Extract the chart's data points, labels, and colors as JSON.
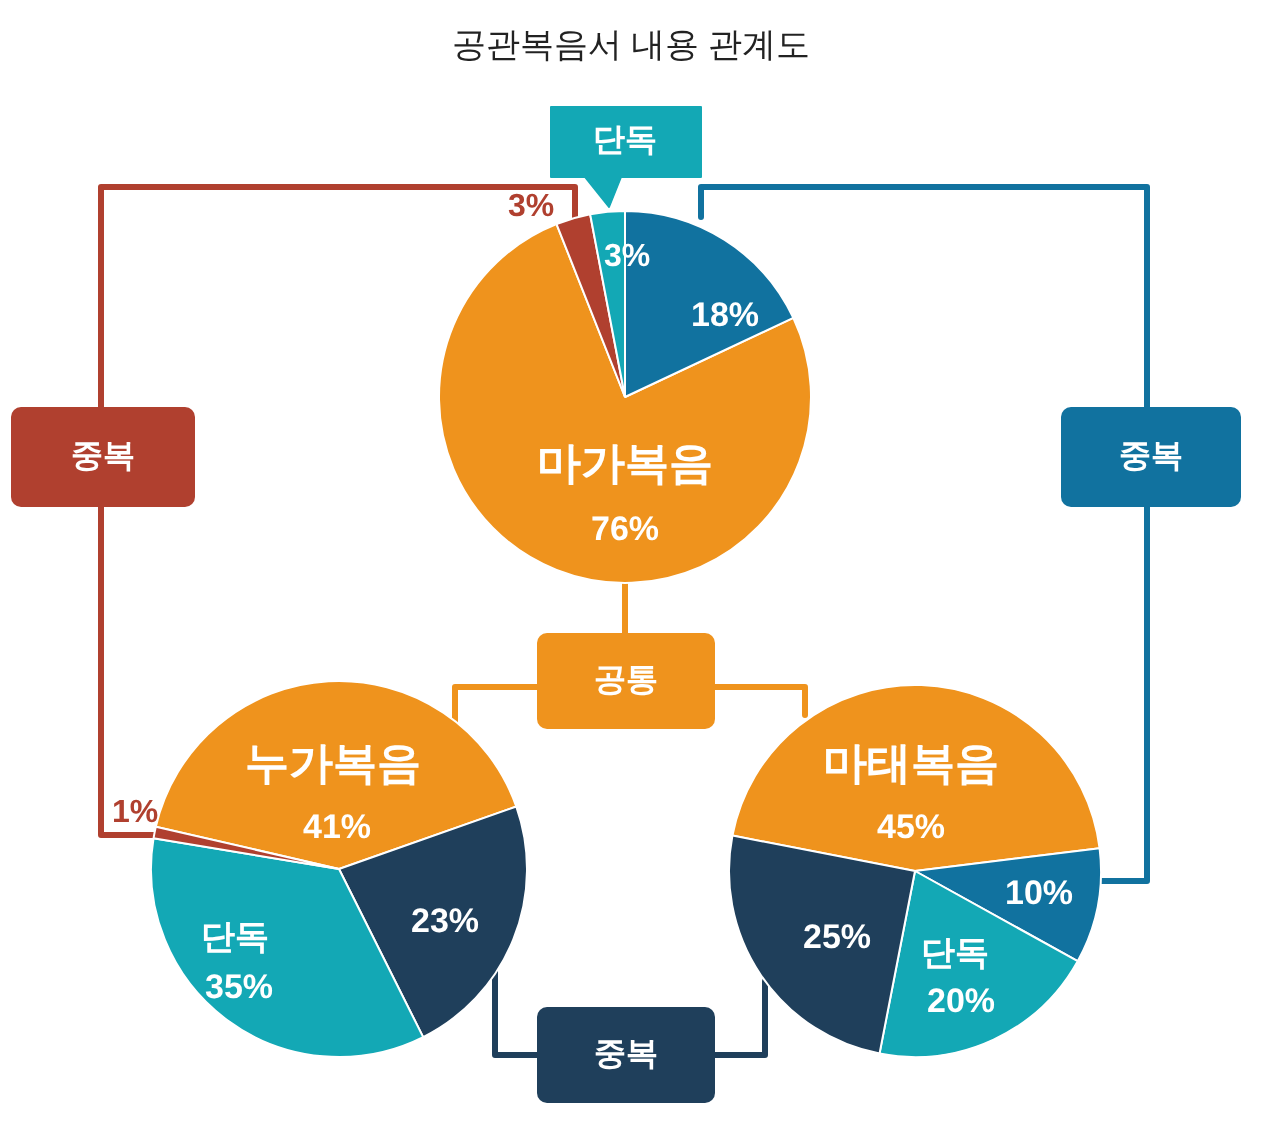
{
  "chart_data": [
    {
      "type": "pie",
      "title": "공관복음서 내용 관계도",
      "categories": [
        "마가복음",
        null,
        "단독",
        null
      ],
      "values": [
        76,
        3,
        3,
        18
      ],
      "value_labels": [
        "76%",
        "3%",
        "3%",
        "18%"
      ],
      "colors": [
        "#ef931d",
        "#b0402f",
        "#13a8b5",
        "#11729f"
      ],
      "annotations": [
        "중복",
        "중복",
        "공통",
        "중복"
      ]
    },
    {
      "type": "pie",
      "categories": [
        "누가복음",
        null,
        "단독",
        null
      ],
      "values": [
        41,
        23,
        35,
        1
      ],
      "value_labels": [
        "41%",
        "23%",
        "35%",
        "1%"
      ],
      "colors": [
        "#ef931d",
        "#1f3f5b",
        "#13a8b5",
        "#b0402f"
      ]
    },
    {
      "type": "pie",
      "categories": [
        "마태복음",
        null,
        "단독",
        null
      ],
      "values": [
        45,
        10,
        20,
        25
      ],
      "value_labels": [
        "45%",
        "10%",
        "20%",
        "25%"
      ],
      "colors": [
        "#ef931d",
        "#11729f",
        "#13a8b5",
        "#1f3f5b"
      ]
    }
  ]
}
